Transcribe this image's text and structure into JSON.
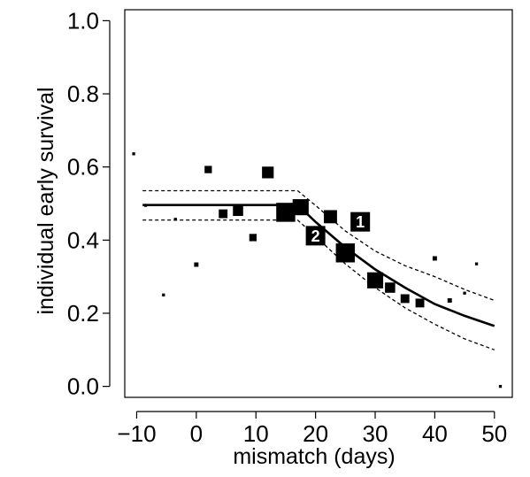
{
  "chart_data": {
    "type": "scatter",
    "xlabel": "mismatch (days)",
    "ylabel": "individual early survival",
    "xlim": [
      -12,
      53
    ],
    "ylim": [
      -0.03,
      1.03
    ],
    "xticks": [
      -10,
      0,
      10,
      20,
      30,
      40,
      50
    ],
    "yticks": [
      0.0,
      0.2,
      0.4,
      0.6,
      0.8,
      1.0
    ],
    "xtick_labels": [
      "−10",
      "0",
      "10",
      "20",
      "30",
      "40",
      "50"
    ],
    "ytick_labels": [
      "0.0",
      "0.2",
      "0.4",
      "0.6",
      "0.8",
      "1.0"
    ],
    "grid": false,
    "colors": {
      "marks": "#000000",
      "annotation_text": "#ffffff"
    },
    "points": [
      {
        "x": -10.5,
        "y": 0.636,
        "w": 1
      },
      {
        "x": -8.5,
        "y": 0.495,
        "w": 1
      },
      {
        "x": -5.5,
        "y": 0.25,
        "w": 1
      },
      {
        "x": -3.5,
        "y": 0.457,
        "w": 1
      },
      {
        "x": 0,
        "y": 0.333,
        "w": 1.5
      },
      {
        "x": 2,
        "y": 0.593,
        "w": 2.5
      },
      {
        "x": 4.5,
        "y": 0.472,
        "w": 3
      },
      {
        "x": 7,
        "y": 0.48,
        "w": 3.5
      },
      {
        "x": 9.5,
        "y": 0.407,
        "w": 2.5
      },
      {
        "x": 12,
        "y": 0.585,
        "w": 4
      },
      {
        "x": 15,
        "y": 0.476,
        "w": 6.5
      },
      {
        "x": 17.5,
        "y": 0.49,
        "w": 5.5
      },
      {
        "x": 22.5,
        "y": 0.464,
        "w": 4.5
      },
      {
        "x": 25,
        "y": 0.365,
        "w": 6.5
      },
      {
        "x": 30,
        "y": 0.29,
        "w": 5.5
      },
      {
        "x": 32.5,
        "y": 0.27,
        "w": 3.5
      },
      {
        "x": 35,
        "y": 0.24,
        "w": 3
      },
      {
        "x": 37.5,
        "y": 0.228,
        "w": 3
      },
      {
        "x": 40,
        "y": 0.35,
        "w": 1.5
      },
      {
        "x": 42.5,
        "y": 0.235,
        "w": 1.5
      },
      {
        "x": 45,
        "y": 0.255,
        "w": 1
      },
      {
        "x": 47,
        "y": 0.335,
        "w": 1
      },
      {
        "x": 51,
        "y": 0.0,
        "w": 1
      }
    ],
    "annotations": [
      {
        "label": "1",
        "x": 27.5,
        "y": 0.45
      },
      {
        "label": "2",
        "x": 20,
        "y": 0.412
      }
    ],
    "fit": {
      "x": [
        -9,
        -5,
        0,
        5,
        10,
        15,
        17,
        20,
        25,
        30,
        35,
        40,
        45,
        50
      ],
      "y": [
        0.496,
        0.496,
        0.496,
        0.496,
        0.496,
        0.496,
        0.496,
        0.45,
        0.38,
        0.32,
        0.27,
        0.225,
        0.193,
        0.165
      ]
    },
    "ci_upper": {
      "x": [
        -9,
        -5,
        0,
        5,
        10,
        15,
        17,
        20,
        25,
        30,
        35,
        40,
        45,
        50
      ],
      "y": [
        0.535,
        0.535,
        0.535,
        0.535,
        0.535,
        0.535,
        0.535,
        0.495,
        0.425,
        0.37,
        0.33,
        0.3,
        0.265,
        0.235
      ]
    },
    "ci_lower": {
      "x": [
        -9,
        -5,
        0,
        5,
        10,
        15,
        17,
        20,
        25,
        30,
        35,
        40,
        45,
        50
      ],
      "y": [
        0.455,
        0.455,
        0.455,
        0.455,
        0.455,
        0.455,
        0.455,
        0.41,
        0.335,
        0.27,
        0.215,
        0.17,
        0.13,
        0.1
      ]
    }
  }
}
